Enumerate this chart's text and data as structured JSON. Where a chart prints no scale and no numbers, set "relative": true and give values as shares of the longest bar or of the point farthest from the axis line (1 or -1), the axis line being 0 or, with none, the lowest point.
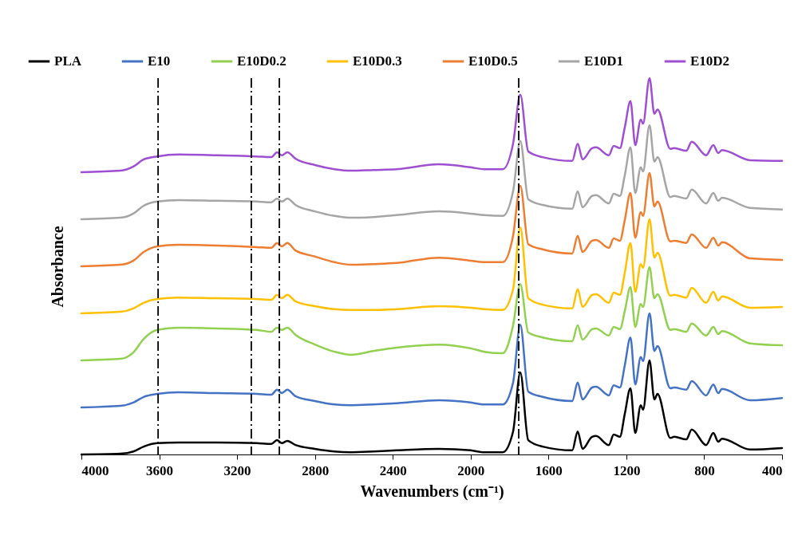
{
  "chart_data": {
    "type": "line",
    "xlabel": "Wavenumbers (cm⁻¹)",
    "ylabel": "Absorbance",
    "relative": true,
    "legend": "top",
    "xlim": [
      4000,
      400
    ],
    "xticks": [
      4000,
      3600,
      3200,
      2800,
      2400,
      2000,
      1600,
      1200,
      800,
      400
    ],
    "x": [
      4000,
      3800,
      3733,
      3680,
      3610,
      3500,
      3300,
      3100,
      3024,
      2995,
      2970,
      2942,
      2900,
      2800,
      2700,
      2614,
      2500,
      2380,
      2163,
      2000,
      1930,
      1835,
      1782,
      1745,
      1704,
      1630,
      1478,
      1450,
      1425,
      1376,
      1356,
      1290,
      1265,
      1233,
      1208,
      1179,
      1154,
      1126,
      1114,
      1081,
      1056,
      1040,
      974,
      954,
      892,
      864,
      790,
      753,
      728,
      708,
      564,
      400
    ],
    "series": [
      {
        "name": "PLA",
        "color": "#000000",
        "values": [
          0,
          0.002,
          0.008,
          0.021,
          0.03,
          0.032,
          0.032,
          0.03,
          0.028,
          0.038,
          0.03,
          0.036,
          0.025,
          0.015,
          0.008,
          0.006,
          0.008,
          0.011,
          0.015,
          0.011,
          0.006,
          0.006,
          0.061,
          0.218,
          0.038,
          0.021,
          0.011,
          0.061,
          0.015,
          0.047,
          0.049,
          0.025,
          0.053,
          0.047,
          0.108,
          0.176,
          0.057,
          0.131,
          0.119,
          0.25,
          0.146,
          0.161,
          0.044,
          0.047,
          0.04,
          0.066,
          0.025,
          0.057,
          0.034,
          0.042,
          0.013,
          0.017
        ]
      },
      {
        "name": "E10",
        "color": "#4472c4",
        "values": [
          0.125,
          0.129,
          0.138,
          0.153,
          0.161,
          0.165,
          0.163,
          0.161,
          0.159,
          0.172,
          0.163,
          0.172,
          0.155,
          0.142,
          0.133,
          0.131,
          0.133,
          0.136,
          0.144,
          0.138,
          0.133,
          0.133,
          0.191,
          0.345,
          0.167,
          0.153,
          0.142,
          0.191,
          0.146,
          0.178,
          0.18,
          0.157,
          0.184,
          0.178,
          0.237,
          0.311,
          0.186,
          0.259,
          0.248,
          0.375,
          0.275,
          0.288,
          0.176,
          0.178,
          0.172,
          0.195,
          0.157,
          0.186,
          0.163,
          0.174,
          0.144,
          0.15
        ]
      },
      {
        "name": "E10D0.2",
        "color": "#92d050",
        "values": [
          0.25,
          0.254,
          0.271,
          0.307,
          0.331,
          0.337,
          0.335,
          0.331,
          0.326,
          0.337,
          0.331,
          0.337,
          0.318,
          0.292,
          0.273,
          0.265,
          0.275,
          0.284,
          0.292,
          0.282,
          0.273,
          0.269,
          0.343,
          0.453,
          0.324,
          0.311,
          0.301,
          0.343,
          0.305,
          0.333,
          0.335,
          0.316,
          0.339,
          0.333,
          0.381,
          0.445,
          0.339,
          0.4,
          0.392,
          0.498,
          0.415,
          0.426,
          0.331,
          0.333,
          0.326,
          0.348,
          0.316,
          0.339,
          0.32,
          0.328,
          0.295,
          0.29
        ]
      },
      {
        "name": "E10D0.3",
        "color": "#ffc000",
        "values": [
          0.375,
          0.379,
          0.388,
          0.403,
          0.413,
          0.417,
          0.415,
          0.413,
          0.411,
          0.424,
          0.415,
          0.424,
          0.407,
          0.394,
          0.386,
          0.384,
          0.384,
          0.386,
          0.394,
          0.39,
          0.386,
          0.384,
          0.439,
          0.604,
          0.415,
          0.398,
          0.388,
          0.439,
          0.392,
          0.424,
          0.426,
          0.403,
          0.43,
          0.424,
          0.483,
          0.562,
          0.432,
          0.506,
          0.496,
          0.625,
          0.523,
          0.536,
          0.422,
          0.424,
          0.417,
          0.443,
          0.403,
          0.432,
          0.409,
          0.42,
          0.39,
          0.392
        ]
      },
      {
        "name": "E10D0.5",
        "color": "#ed7d31",
        "values": [
          0.5,
          0.504,
          0.515,
          0.538,
          0.553,
          0.557,
          0.555,
          0.551,
          0.549,
          0.562,
          0.553,
          0.562,
          0.542,
          0.526,
          0.511,
          0.504,
          0.506,
          0.509,
          0.523,
          0.515,
          0.511,
          0.511,
          0.581,
          0.714,
          0.559,
          0.545,
          0.534,
          0.581,
          0.538,
          0.568,
          0.57,
          0.549,
          0.574,
          0.568,
          0.623,
          0.695,
          0.576,
          0.644,
          0.634,
          0.748,
          0.659,
          0.672,
          0.566,
          0.568,
          0.562,
          0.585,
          0.549,
          0.576,
          0.555,
          0.564,
          0.521,
          0.517
        ]
      },
      {
        "name": "E10D1",
        "color": "#a5a5a5",
        "values": [
          0.625,
          0.629,
          0.64,
          0.661,
          0.672,
          0.676,
          0.674,
          0.672,
          0.67,
          0.68,
          0.672,
          0.68,
          0.663,
          0.646,
          0.634,
          0.629,
          0.631,
          0.636,
          0.646,
          0.64,
          0.636,
          0.634,
          0.699,
          0.833,
          0.678,
          0.663,
          0.653,
          0.699,
          0.657,
          0.687,
          0.689,
          0.667,
          0.693,
          0.687,
          0.742,
          0.816,
          0.695,
          0.763,
          0.752,
          0.875,
          0.778,
          0.79,
          0.684,
          0.687,
          0.68,
          0.704,
          0.667,
          0.695,
          0.674,
          0.682,
          0.655,
          0.651
        ]
      },
      {
        "name": "E10D2",
        "color": "#9e4fd1",
        "values": [
          0.75,
          0.754,
          0.765,
          0.784,
          0.792,
          0.797,
          0.795,
          0.792,
          0.79,
          0.803,
          0.795,
          0.803,
          0.786,
          0.769,
          0.758,
          0.754,
          0.756,
          0.758,
          0.771,
          0.763,
          0.758,
          0.758,
          0.826,
          0.956,
          0.805,
          0.79,
          0.78,
          0.826,
          0.784,
          0.814,
          0.816,
          0.795,
          0.82,
          0.814,
          0.869,
          0.939,
          0.822,
          0.89,
          0.879,
          1,
          0.905,
          0.917,
          0.812,
          0.814,
          0.807,
          0.831,
          0.795,
          0.822,
          0.801,
          0.809,
          0.782,
          0.78
        ]
      }
    ],
    "ref_lines": [
      {
        "axis": "x",
        "value": 3606,
        "color": "#000000",
        "line_style": "dashdot"
      },
      {
        "axis": "x",
        "value": 3127,
        "color": "#000000",
        "line_style": "dashdot"
      },
      {
        "axis": "x",
        "value": 2983,
        "color": "#000000",
        "line_style": "dashdot"
      },
      {
        "axis": "x",
        "value": 1753,
        "color": "#000000",
        "line_style": "dashdot"
      }
    ]
  }
}
